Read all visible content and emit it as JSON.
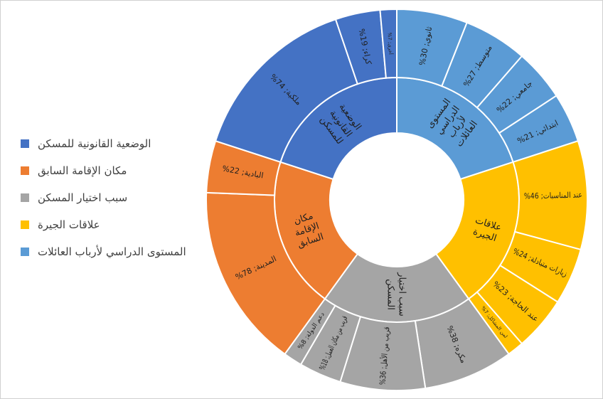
{
  "chart_data": {
    "type": "sunburst",
    "categories": [
      {
        "name": "المستوى الدراسي لأرباب العائلات",
        "label": "المستوى الدراسي لأرباب العائلات",
        "color": "#5B9BD5",
        "children": [
          {
            "name": "ثانوي",
            "value": 30,
            "label": "ثانوي; 30%"
          },
          {
            "name": "متوسط",
            "value": 27,
            "label": "متوسط; 27%"
          },
          {
            "name": "جامعي",
            "value": 22,
            "label": "جامعي; 22%"
          },
          {
            "name": "ابتدائي",
            "value": 21,
            "label": "ابتدائي; 21%"
          }
        ]
      },
      {
        "name": "علاقات الجيرة",
        "label": "علاقات الجيرة",
        "color": "#FFC000",
        "children": [
          {
            "name": "عند المناسبات",
            "value": 46,
            "label": "عند المناسبات; 46%"
          },
          {
            "name": "زيارات متبادلة",
            "value": 24,
            "label": "زيارات متبادلة; 24%"
          },
          {
            "name": "عند الحاجة",
            "value": 23,
            "label": "عند الحاجة; 23%"
          },
          {
            "name": "لمن المشاكل",
            "value": 7,
            "label": "لمن المشاكل; 7%"
          }
        ]
      },
      {
        "name": "سبب اختيار المسكن",
        "label": "سبب اختيار المسكن",
        "color": "#A5A5A5",
        "children": [
          {
            "name": "مكره",
            "value": 38,
            "label": "مكره; 38%"
          },
          {
            "name": "قريب من الأهل",
            "value": 36,
            "label": "قريب من الأهل; 36%"
          },
          {
            "name": "قريب من مكان العمل",
            "value": 18,
            "label": "قريب من مكان العمل; 18%"
          },
          {
            "name": "دعم الدولة",
            "value": 8,
            "label": "دعم الدولة; 8%"
          }
        ]
      },
      {
        "name": "مكان الإقامة السابق",
        "label": "مكان الإقامة السابق",
        "color": "#ED7D31",
        "children": [
          {
            "name": "المدينة",
            "value": 78,
            "label": "المدينة; 78%"
          },
          {
            "name": "البادية",
            "value": 22,
            "label": "البادية; 22%"
          }
        ]
      },
      {
        "name": "الوضعية القانونية للمسكن",
        "label": "الوضعية القانونية للمسكن",
        "color": "#4472C4",
        "children": [
          {
            "name": "ملكية",
            "value": 74,
            "label": "ملكية; 74%"
          },
          {
            "name": "كراء",
            "value": 19,
            "label": "كراء; 19%"
          },
          {
            "name": "أخرى",
            "value": 7,
            "label": "أخرى; 7%"
          }
        ]
      }
    ],
    "legend": [
      {
        "label": "الوضعية القانونية للمسكن",
        "color": "#4472C4"
      },
      {
        "label": "مكان الإقامة السابق",
        "color": "#ED7D31"
      },
      {
        "label": "سبب اختيار المسكن",
        "color": "#A5A5A5"
      },
      {
        "label": "علاقات الجيرة",
        "color": "#FFC000"
      },
      {
        "label": "المستوى الدراسي لأرباب العائلات",
        "color": "#5B9BD5"
      }
    ],
    "legend_position": "left"
  }
}
